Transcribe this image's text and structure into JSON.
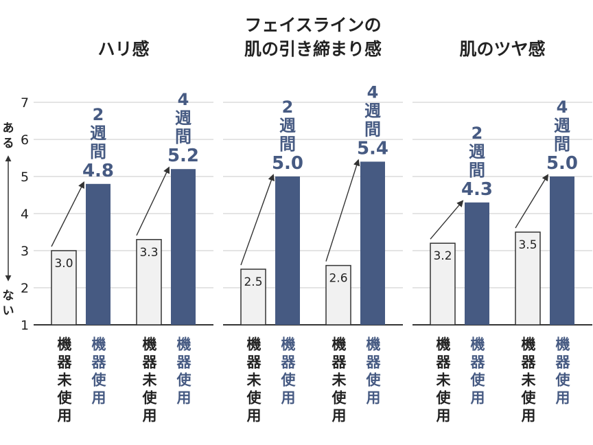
{
  "chart_data": {
    "type": "bar",
    "ylim": [
      1,
      7
    ],
    "yticks": [
      "1",
      "2",
      "3",
      "4",
      "5",
      "6",
      "7"
    ],
    "ylabel_top": "ある",
    "ylabel_bottom": "ない",
    "grid": true,
    "colors": {
      "before": "#f1f1f1",
      "after": "#465a82",
      "after_text": "#465a82",
      "grid": "#dcdcdc"
    },
    "bar_labels": {
      "before": "機器未使用",
      "after": "機器使用"
    },
    "panels": [
      {
        "title_lines": [
          "ハリ感"
        ],
        "groups": [
          {
            "period": "2",
            "period_unit": "週間",
            "before": 3.0,
            "after": 4.8,
            "before_label": "3.0",
            "after_label": "4.8"
          },
          {
            "period": "4",
            "period_unit": "週間",
            "before": 3.3,
            "after": 5.2,
            "before_label": "3.3",
            "after_label": "5.2"
          }
        ]
      },
      {
        "title_lines": [
          "フェイスラインの",
          "肌の引き締まり感"
        ],
        "groups": [
          {
            "period": "2",
            "period_unit": "週間",
            "before": 2.5,
            "after": 5.0,
            "before_label": "2.5",
            "after_label": "5.0"
          },
          {
            "period": "4",
            "period_unit": "週間",
            "before": 2.6,
            "after": 5.4,
            "before_label": "2.6",
            "after_label": "5.4"
          }
        ]
      },
      {
        "title_lines": [
          "肌のツヤ感"
        ],
        "groups": [
          {
            "period": "2",
            "period_unit": "週間",
            "before": 3.2,
            "after": 4.3,
            "before_label": "3.2",
            "after_label": "4.3"
          },
          {
            "period": "4",
            "period_unit": "週間",
            "before": 3.5,
            "after": 5.0,
            "before_label": "3.5",
            "after_label": "5.0"
          }
        ]
      }
    ]
  }
}
